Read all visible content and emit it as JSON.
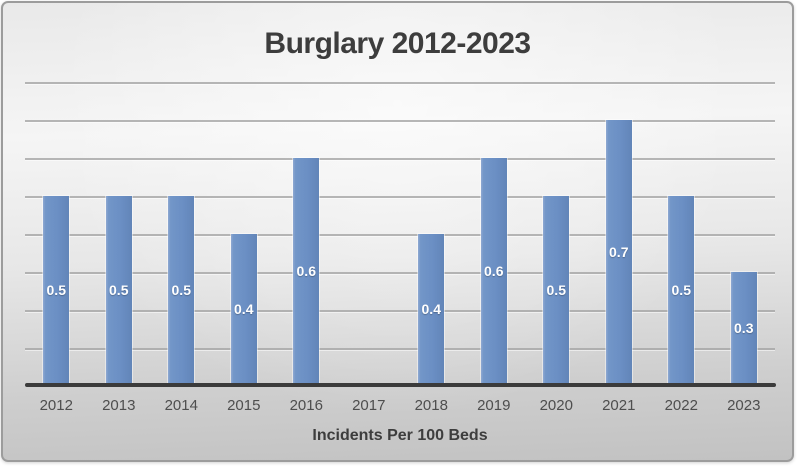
{
  "chart_data": {
    "type": "bar",
    "title": "Burglary 2012-2023",
    "xlabel": "Incidents Per 100 Beds",
    "ylabel": "",
    "categories": [
      "2012",
      "2013",
      "2014",
      "2015",
      "2016",
      "2017",
      "2018",
      "2019",
      "2020",
      "2021",
      "2022",
      "2023"
    ],
    "values": [
      0.5,
      0.5,
      0.5,
      0.4,
      0.6,
      null,
      0.4,
      0.6,
      0.5,
      0.7,
      0.5,
      0.3
    ],
    "data_labels": [
      "0.5",
      "0.5",
      "0.5",
      "0.4",
      "0.6",
      "",
      "0.4",
      "0.6",
      "0.5",
      "0.7",
      "0.5",
      "0.3"
    ],
    "ylim": [
      0,
      0.8
    ],
    "gridline_interval": 0.1,
    "grid": true,
    "legend": "none",
    "y_axis_labels_visible": false,
    "data_label_position": "inside-center",
    "colors": {
      "bar": "#6B8FC4",
      "bar_highlight": "#8FA9D2",
      "data_label": "#FFFFFF",
      "axis_line": "#3B3B3B",
      "gridline": "#A6A6A6",
      "title_text": "#3D3D3D",
      "tick_text": "#4E4E4E",
      "frame_border": "#9C9C9C"
    }
  }
}
